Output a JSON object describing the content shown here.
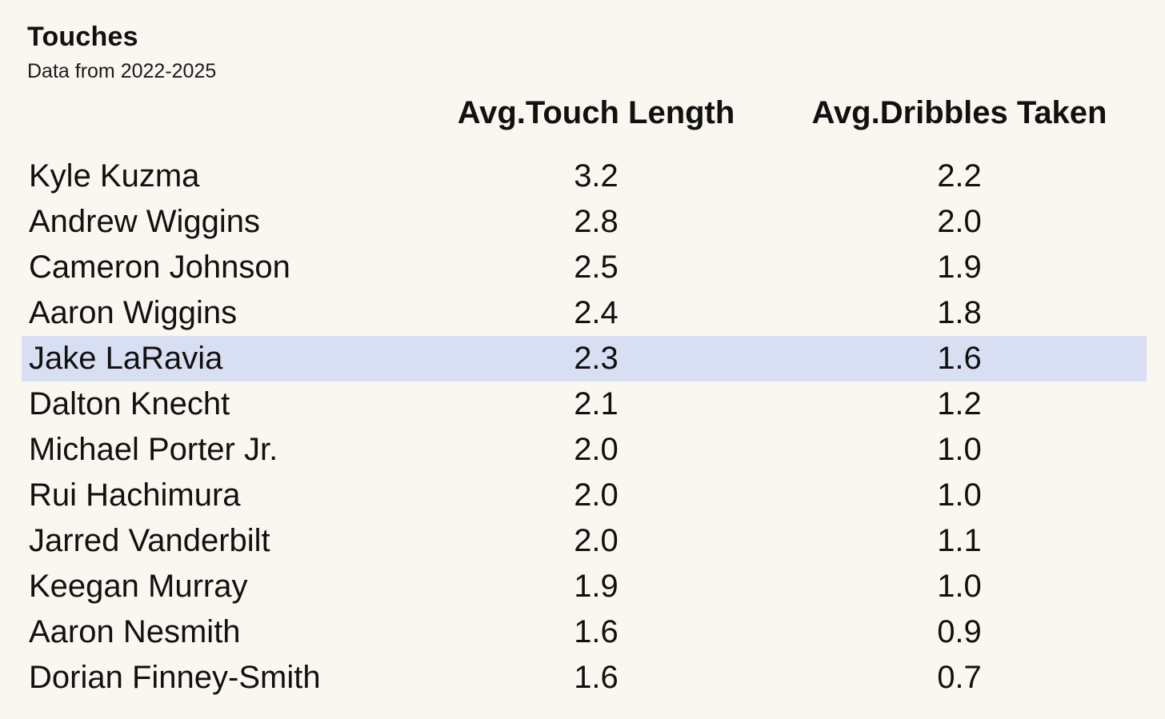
{
  "chart_data": {
    "type": "table",
    "title": "Touches",
    "subtitle": "Data from 2022-2025",
    "columns": [
      "",
      "Avg.Touch Length",
      "Avg.Dribbles Taken"
    ],
    "rows": [
      {
        "name": "Kyle Kuzma",
        "touch": "3.2",
        "dribbles": "2.2",
        "highlight": false
      },
      {
        "name": "Andrew Wiggins",
        "touch": "2.8",
        "dribbles": "2.0",
        "highlight": false
      },
      {
        "name": "Cameron Johnson",
        "touch": "2.5",
        "dribbles": "1.9",
        "highlight": false
      },
      {
        "name": "Aaron Wiggins",
        "touch": "2.4",
        "dribbles": "1.8",
        "highlight": false
      },
      {
        "name": "Jake LaRavia",
        "touch": "2.3",
        "dribbles": "1.6",
        "highlight": true
      },
      {
        "name": "Dalton Knecht",
        "touch": "2.1",
        "dribbles": "1.2",
        "highlight": false
      },
      {
        "name": "Michael Porter Jr.",
        "touch": "2.0",
        "dribbles": "1.0",
        "highlight": false
      },
      {
        "name": "Rui Hachimura",
        "touch": "2.0",
        "dribbles": "1.0",
        "highlight": false
      },
      {
        "name": "Jarred Vanderbilt",
        "touch": "2.0",
        "dribbles": "1.1",
        "highlight": false
      },
      {
        "name": "Keegan Murray",
        "touch": "1.9",
        "dribbles": "1.0",
        "highlight": false
      },
      {
        "name": "Aaron Nesmith",
        "touch": "1.6",
        "dribbles": "0.9",
        "highlight": false
      },
      {
        "name": "Dorian Finney-Smith",
        "touch": "1.6",
        "dribbles": "0.7",
        "highlight": false
      }
    ],
    "colors": {
      "background": "#faf7f0",
      "highlight": "#d9dff3",
      "text": "#111111"
    }
  }
}
